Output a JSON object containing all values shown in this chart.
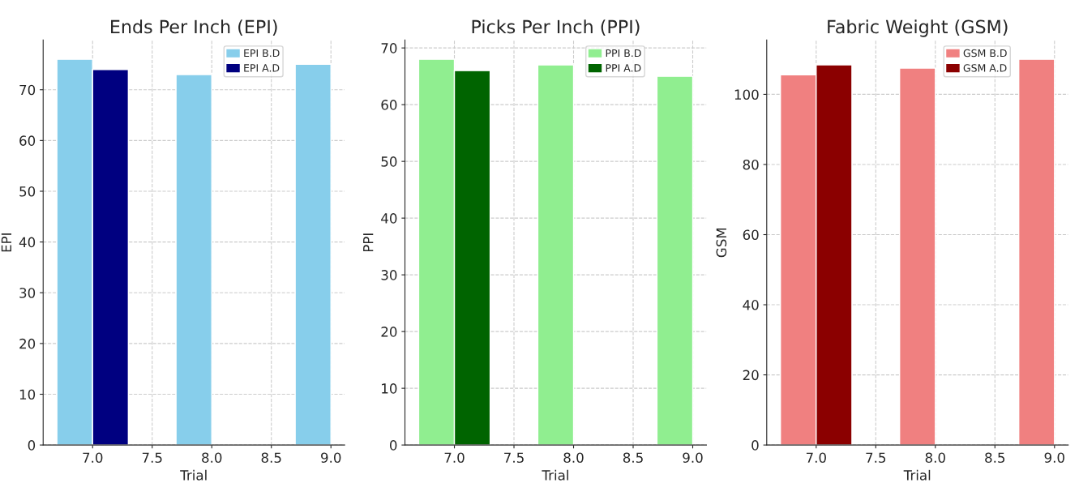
{
  "chart_data": [
    {
      "type": "bar",
      "title": "Ends Per Inch (EPI)",
      "xlabel": "Trial",
      "ylabel": "EPI",
      "x": [
        7,
        8,
        9
      ],
      "series": [
        {
          "name": "EPI B.D",
          "color": "#87ceeb",
          "values": [
            76,
            73,
            75
          ]
        },
        {
          "name": "EPI A.D",
          "color": "#000080",
          "values": [
            74,
            null,
            null
          ]
        }
      ],
      "xlim": [
        6.585,
        9.115
      ],
      "xticks": [
        {
          "value": 7,
          "label": "7.0"
        },
        {
          "value": 7.5,
          "label": "7.5"
        },
        {
          "value": 8,
          "label": "8.0"
        },
        {
          "value": 8.5,
          "label": "8.5"
        },
        {
          "value": 9,
          "label": "9.0"
        }
      ],
      "ylim": [
        0,
        79.8
      ],
      "yticks": [
        0,
        10,
        20,
        30,
        40,
        50,
        60,
        70
      ],
      "grid": true,
      "legend": "top"
    },
    {
      "type": "bar",
      "title": "Picks Per Inch (PPI)",
      "xlabel": "Trial",
      "ylabel": "PPI",
      "x": [
        7,
        8,
        9
      ],
      "series": [
        {
          "name": "PPI B.D",
          "color": "#90ee90",
          "values": [
            68,
            67,
            65
          ]
        },
        {
          "name": "PPI A.D",
          "color": "#006400",
          "values": [
            66,
            null,
            null
          ]
        }
      ],
      "xlim": [
        6.585,
        9.115
      ],
      "xticks": [
        {
          "value": 7,
          "label": "7.0"
        },
        {
          "value": 7.5,
          "label": "7.5"
        },
        {
          "value": 8,
          "label": "8.0"
        },
        {
          "value": 8.5,
          "label": "8.5"
        },
        {
          "value": 9,
          "label": "9.0"
        }
      ],
      "ylim": [
        0,
        71.4
      ],
      "yticks": [
        0,
        10,
        20,
        30,
        40,
        50,
        60,
        70
      ],
      "grid": true,
      "legend": "top"
    },
    {
      "type": "bar",
      "title": "Fabric Weight (GSM)",
      "xlabel": "Trial",
      "ylabel": "GSM",
      "x": [
        7,
        8,
        9
      ],
      "series": [
        {
          "name": "GSM B.D",
          "color": "#f08080",
          "values": [
            105.6,
            107.5,
            110
          ]
        },
        {
          "name": "GSM A.D",
          "color": "#8b0000",
          "values": [
            108.4,
            null,
            null
          ]
        }
      ],
      "xlim": [
        6.585,
        9.115
      ],
      "xticks": [
        {
          "value": 7,
          "label": "7.0"
        },
        {
          "value": 7.5,
          "label": "7.5"
        },
        {
          "value": 8,
          "label": "8.0"
        },
        {
          "value": 8.5,
          "label": "8.5"
        },
        {
          "value": 9,
          "label": "9.0"
        }
      ],
      "ylim": [
        0,
        115.5
      ],
      "yticks": [
        0,
        20,
        40,
        60,
        80,
        100
      ],
      "grid": true,
      "legend": "top"
    }
  ]
}
